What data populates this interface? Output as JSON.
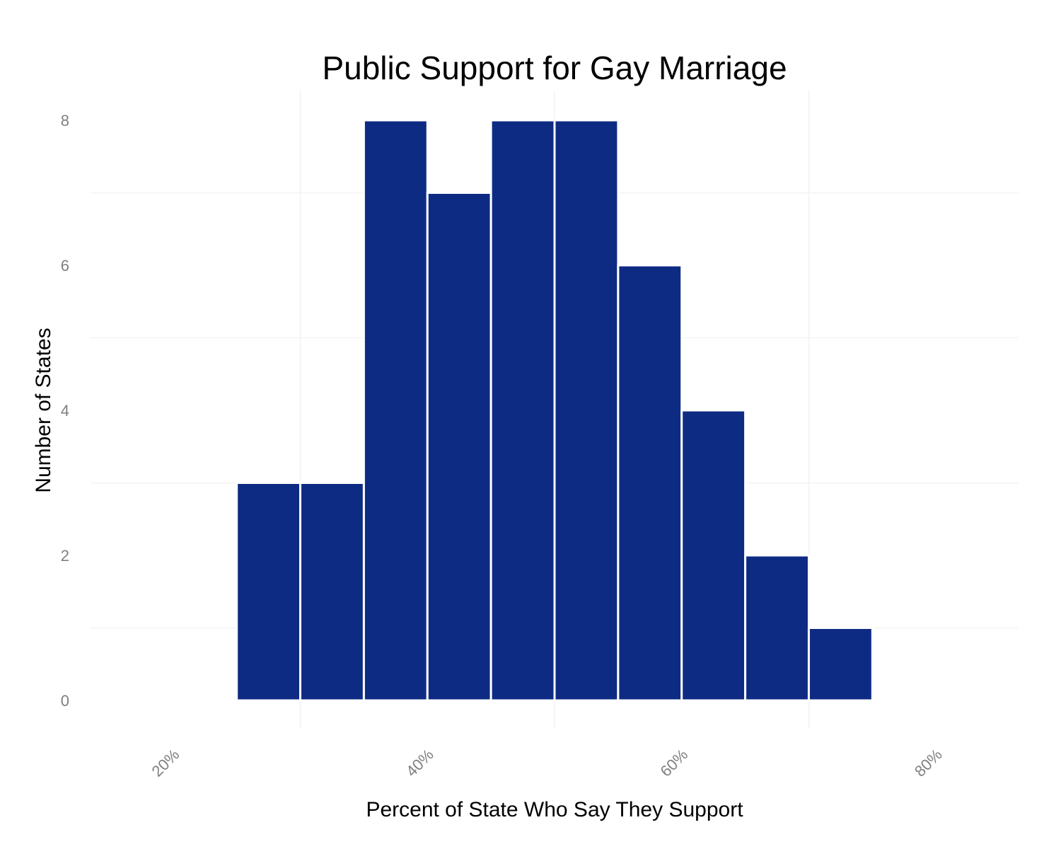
{
  "chart_data": {
    "type": "bar",
    "title": "Public Support for Gay Marriage",
    "xlabel": "Percent of State Who Say They Support",
    "ylabel": "Number of States",
    "bin_width": 5,
    "bins": [
      {
        "start": 25,
        "end": 30,
        "count": 3
      },
      {
        "start": 30,
        "end": 35,
        "count": 3
      },
      {
        "start": 35,
        "end": 40,
        "count": 8
      },
      {
        "start": 40,
        "end": 45,
        "count": 7
      },
      {
        "start": 45,
        "end": 50,
        "count": 8
      },
      {
        "start": 50,
        "end": 55,
        "count": 8
      },
      {
        "start": 55,
        "end": 60,
        "count": 6
      },
      {
        "start": 60,
        "end": 65,
        "count": 4
      },
      {
        "start": 65,
        "end": 70,
        "count": 2
      },
      {
        "start": 70,
        "end": 75,
        "count": 1
      }
    ],
    "xlim": [
      13.5,
      86.5
    ],
    "ylim": [
      0,
      8.4
    ],
    "x_ticks": [
      20,
      40,
      60,
      80
    ],
    "x_tick_labels": [
      "20%",
      "40%",
      "60%",
      "80%"
    ],
    "y_ticks": [
      0,
      2,
      4,
      6,
      8
    ],
    "y_tick_labels": [
      "0",
      "2",
      "4",
      "6",
      "8"
    ],
    "grid": true,
    "legend": "none",
    "bar_color": "#0e2b84",
    "bar_outline_color": "#ffffff"
  }
}
